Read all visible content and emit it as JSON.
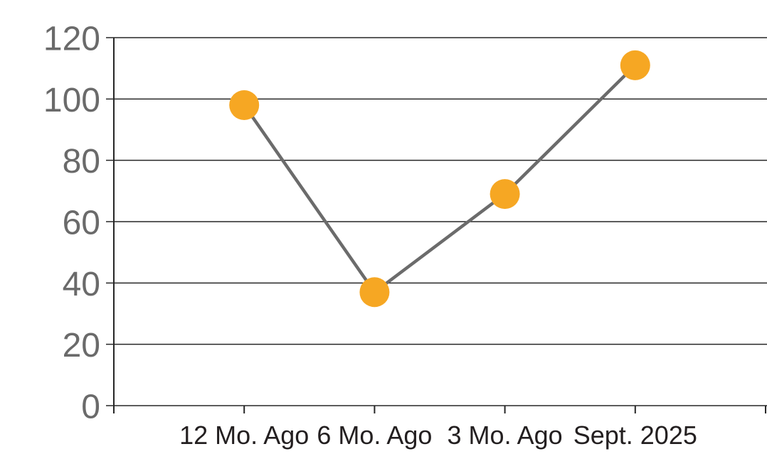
{
  "chart_data": {
    "type": "line",
    "title": "",
    "xlabel": "",
    "ylabel": "",
    "categories": [
      "12 Mo. Ago",
      "6 Mo. Ago",
      "3 Mo. Ago",
      "Sept. 2025"
    ],
    "series": [
      {
        "name": "series-1",
        "values": [
          98,
          37,
          69,
          111
        ]
      }
    ],
    "ylim": [
      0,
      120
    ],
    "yticks": [
      0,
      20,
      40,
      60,
      80,
      100,
      120
    ],
    "grid": "horizontal",
    "legend": "none",
    "colors": {
      "marker": "#F6A723",
      "line": "#6B6B6B",
      "grid_and_axis": "#262626",
      "y_tick_label": "#6A6A6A",
      "x_tick_label": "#231F20",
      "background": "#FFFFFF"
    }
  }
}
